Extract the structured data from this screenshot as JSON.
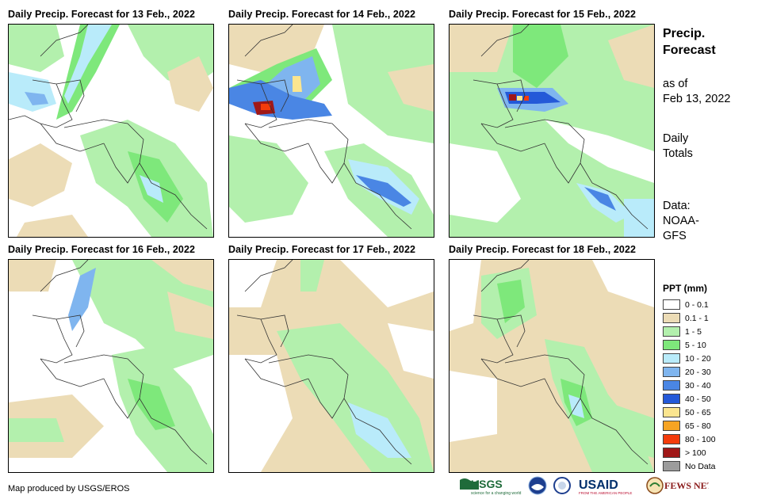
{
  "panels": [
    {
      "title": "Daily Precip. Forecast for 13 Feb., 2022"
    },
    {
      "title": "Daily Precip. Forecast for 14 Feb., 2022"
    },
    {
      "title": "Daily Precip. Forecast for 15 Feb., 2022"
    },
    {
      "title": "Daily Precip. Forecast for 16 Feb., 2022"
    },
    {
      "title": "Daily Precip. Forecast for 17 Feb., 2022"
    },
    {
      "title": "Daily Precip. Forecast for 18 Feb., 2022"
    }
  ],
  "sidebar": {
    "heading_line1": "Precip.",
    "heading_line2": "Forecast",
    "asof_line1": "as of",
    "asof_line2": "Feb 13, 2022",
    "totals_line1": "Daily",
    "totals_line2": "Totals",
    "data_line1": "Data:",
    "data_line2": "NOAA-",
    "data_line3": "GFS"
  },
  "legend": {
    "title": "PPT (mm)",
    "items": [
      {
        "label": "0 - 0.1",
        "color": "#ffffff"
      },
      {
        "label": "0.1 - 1",
        "color": "#ecdcb6"
      },
      {
        "label": "1 - 5",
        "color": "#b3f0ad"
      },
      {
        "label": "5 - 10",
        "color": "#7ee87b"
      },
      {
        "label": "10 - 20",
        "color": "#b9ebfa"
      },
      {
        "label": "20 - 30",
        "color": "#7fb5ef"
      },
      {
        "label": "30 - 40",
        "color": "#4a86e4"
      },
      {
        "label": "40 - 50",
        "color": "#2459d8"
      },
      {
        "label": "50 - 65",
        "color": "#fbe58f"
      },
      {
        "label": "65 - 80",
        "color": "#f6a424"
      },
      {
        "label": "80 - 100",
        "color": "#f43c0c"
      },
      {
        "label": "> 100",
        "color": "#a01818"
      },
      {
        "label": "No Data",
        "color": "#9c9c9c"
      }
    ]
  },
  "footer": {
    "credit": "Map produced by USGS/EROS",
    "logo_usgs": "USGS",
    "logo_usgs_tagline": "science for a changing world",
    "logo_usaid": "USAID",
    "logo_usaid_tagline": "FROM THE AMERICAN PEOPLE",
    "logo_fews": "FEWS NET"
  }
}
